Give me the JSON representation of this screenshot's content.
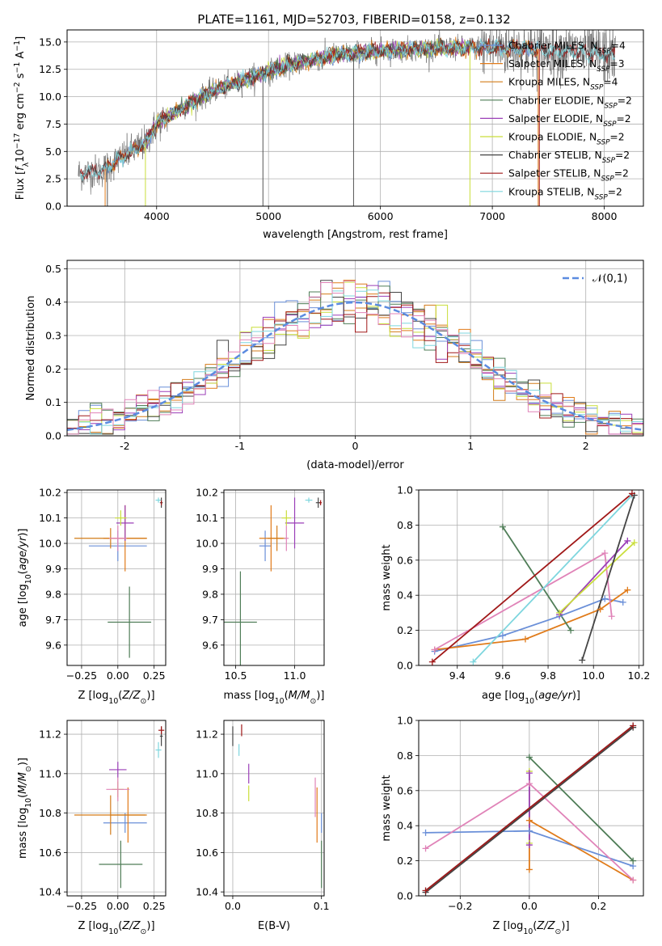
{
  "figure": {
    "title": "PLATE=1161, MJD=52703, FIBERID=0158, z=0.132"
  },
  "colors": {
    "Chabrier MILES": "#6a8fd8",
    "Salpeter MILES": "#e07b1a",
    "Kroupa MILES": "#d37b18",
    "Chabrier ELODIE": "#4f7d57",
    "Salpeter ELODIE": "#9b3fb8",
    "Kroupa ELODIE": "#c9de3a",
    "Chabrier STELIB": "#444444",
    "Salpeter STELIB": "#a01818",
    "Kroupa STELIB": "#7ed6de",
    "pink": "#e083b8",
    "normal": "#5b8be0"
  },
  "chart_data": [
    {
      "id": "spectrum",
      "type": "line",
      "title": "PLATE=1161, MJD=52703, FIBERID=0158, z=0.132",
      "xlabel": "wavelength [Angstrom, rest frame]",
      "ylabel": "Flux [f_λ 10^-17 erg cm^-2 s^-1 A^-1]",
      "xlim": [
        3200,
        8350
      ],
      "ylim": [
        0,
        16.1
      ],
      "xticks": [
        4000,
        5000,
        6000,
        7000,
        8000
      ],
      "yticks": [
        0.0,
        2.5,
        5.0,
        7.5,
        10.0,
        12.5,
        15.0
      ],
      "grid": true,
      "legend": "right",
      "legend_entries": [
        "Chabrier MILES, N_SSP=4",
        "Salpeter MILES, N_SSP=3",
        "Kroupa MILES, N_SSP=4",
        "Chabrier ELODIE, N_SSP=2",
        "Salpeter ELODIE, N_SSP=2",
        "Kroupa ELODIE, N_SSP=2",
        "Chabrier STELIB, N_SSP=2",
        "Salpeter STELIB, N_SSP=2",
        "Kroupa STELIB, N_SSP=2"
      ],
      "continuum_knots": [
        [
          3300,
          3.0
        ],
        [
          3500,
          3.2
        ],
        [
          3700,
          4.5
        ],
        [
          3900,
          5.8
        ],
        [
          4000,
          7.5
        ],
        [
          4200,
          8.8
        ],
        [
          4500,
          10.5
        ],
        [
          4800,
          11.6
        ],
        [
          5000,
          12.3
        ],
        [
          5300,
          13.2
        ],
        [
          5600,
          13.8
        ],
        [
          6000,
          14.2
        ],
        [
          6400,
          14.4
        ],
        [
          6800,
          14.5
        ],
        [
          7200,
          14.4
        ],
        [
          7600,
          14.2
        ],
        [
          8100,
          13.8
        ]
      ],
      "data_range": [
        3300,
        8100
      ],
      "model_ranges": {
        "MILES": [
          3540,
          7410
        ],
        "ELODIE": [
          3900,
          6800
        ],
        "STELIB": [
          3320,
          8100
        ]
      }
    },
    {
      "id": "residual_hist",
      "type": "line",
      "xlabel": "(data-model)/error",
      "ylabel": "Normed distribution",
      "xlim": [
        -2.5,
        2.5
      ],
      "ylim": [
        0,
        0.525
      ],
      "xticks": [
        -2,
        -1,
        0,
        1,
        2
      ],
      "yticks": [
        0.0,
        0.1,
        0.2,
        0.3,
        0.4,
        0.5
      ],
      "grid": true,
      "legend": "top-right",
      "legend_entries": [
        "𝒩(0,1)"
      ],
      "bin_width": 0.1
    },
    {
      "id": "age_vs_Z",
      "type": "scatter",
      "xlabel": "Z [log10(Z/Z☉)]",
      "ylabel": "age  [log10(age/yr)]",
      "xlim": [
        -0.35,
        0.33
      ],
      "ylim": [
        9.52,
        10.21
      ],
      "xticks": [
        -0.25,
        0.0,
        0.25
      ],
      "xticklabels": [
        "−0.25",
        "0.00",
        "0.25"
      ],
      "yticks": [
        9.6,
        9.7,
        9.8,
        9.9,
        10.0,
        10.1,
        10.2
      ],
      "yticklabels": [
        "9.6",
        "9.7",
        "9.8",
        "9.9",
        "10.0",
        "10.1",
        "10.2"
      ],
      "grid": true,
      "points": [
        {
          "s": "Chabrier MILES",
          "x": 0.0,
          "y": 9.99,
          "xe": 0.2,
          "ye": 0.06
        },
        {
          "s": "Salpeter MILES",
          "x": 0.05,
          "y": 10.02,
          "xe": 0.15,
          "ye": 0.13
        },
        {
          "s": "Kroupa MILES",
          "x": -0.05,
          "y": 10.02,
          "xe": 0.25,
          "ye": 0.04
        },
        {
          "s": "Chabrier ELODIE",
          "x": 0.08,
          "y": 9.69,
          "xe": 0.15,
          "ye": 0.14
        },
        {
          "s": "Salpeter ELODIE",
          "x": 0.05,
          "y": 10.08,
          "xe": 0.06,
          "ye": 0.07
        },
        {
          "s": "Kroupa ELODIE",
          "x": 0.02,
          "y": 10.1,
          "xe": 0.04,
          "ye": 0.03
        },
        {
          "s": "pink",
          "x": 0.0,
          "y": 10.02,
          "xe": 0.06,
          "ye": 0.05
        },
        {
          "s": "Chabrier STELIB",
          "x": 0.3,
          "y": 10.16,
          "xe": 0.01,
          "ye": 0.02
        },
        {
          "s": "Kroupa STELIB",
          "x": 0.28,
          "y": 10.17,
          "xe": 0.02,
          "ye": 0.01
        },
        {
          "s": "Salpeter STELIB",
          "x": 0.3,
          "y": 10.16,
          "xe": 0.005,
          "ye": 0.01
        }
      ]
    },
    {
      "id": "age_vs_mass",
      "type": "scatter",
      "xlabel": "mass [log10(M/M☉)]",
      "xlim": [
        10.4,
        11.25
      ],
      "ylim": [
        9.52,
        10.21
      ],
      "xticks": [
        10.5,
        11.0
      ],
      "xticklabels": [
        "10.5",
        "11.0"
      ],
      "yticks": [
        9.6,
        9.7,
        9.8,
        9.9,
        10.0,
        10.1,
        10.2
      ],
      "yticklabels": [
        "9.6",
        "9.7",
        "9.8",
        "9.9",
        "10.0",
        "10.1",
        "10.2"
      ],
      "grid": true,
      "points": [
        {
          "s": "Chabrier MILES",
          "x": 10.75,
          "y": 9.99,
          "xe": 0.05,
          "ye": 0.06
        },
        {
          "s": "Salpeter MILES",
          "x": 10.8,
          "y": 10.02,
          "xe": 0.1,
          "ye": 0.13
        },
        {
          "s": "Kroupa MILES",
          "x": 10.85,
          "y": 10.02,
          "xe": 0.08,
          "ye": 0.05
        },
        {
          "s": "Chabrier ELODIE",
          "x": 10.54,
          "y": 9.69,
          "xe": 0.14,
          "ye": 0.2
        },
        {
          "s": "Salpeter ELODIE",
          "x": 11.0,
          "y": 10.08,
          "xe": 0.08,
          "ye": 0.1
        },
        {
          "s": "Kroupa ELODIE",
          "x": 10.93,
          "y": 10.1,
          "xe": 0.04,
          "ye": 0.03
        },
        {
          "s": "pink",
          "x": 10.93,
          "y": 10.02,
          "xe": 0.02,
          "ye": 0.05
        },
        {
          "s": "Kroupa STELIB",
          "x": 11.12,
          "y": 10.17,
          "xe": 0.03,
          "ye": 0.01
        },
        {
          "s": "Chabrier STELIB",
          "x": 11.2,
          "y": 10.16,
          "xe": 0.02,
          "ye": 0.02
        },
        {
          "s": "Salpeter STELIB",
          "x": 11.22,
          "y": 10.16,
          "xe": 0.01,
          "ye": 0.01
        }
      ]
    },
    {
      "id": "weight_vs_age",
      "type": "line",
      "xlabel": "age  [log10(age/yr)]",
      "ylabel": "mass weight",
      "xlim": [
        9.23,
        10.22
      ],
      "ylim": [
        0,
        1.0
      ],
      "xticks": [
        9.4,
        9.6,
        9.8,
        10.0,
        10.2
      ],
      "xticklabels": [
        "9.4",
        "9.6",
        "9.8",
        "10.0",
        "10.2"
      ],
      "yticks": [
        0.0,
        0.2,
        0.4,
        0.6,
        0.8,
        1.0
      ],
      "yticklabels": [
        "0.0",
        "0.2",
        "0.4",
        "0.6",
        "0.8",
        "1.0"
      ],
      "grid": true,
      "series": [
        {
          "s": "Chabrier MILES",
          "x": [
            9.3,
            9.6,
            9.85,
            10.05,
            10.13
          ],
          "y": [
            0.08,
            0.17,
            0.28,
            0.38,
            0.36
          ]
        },
        {
          "s": "Salpeter MILES",
          "x": [
            9.3,
            9.7,
            10.03,
            10.15
          ],
          "y": [
            0.09,
            0.15,
            0.32,
            0.43
          ]
        },
        {
          "s": "pink",
          "x": [
            9.3,
            10.05,
            10.08
          ],
          "y": [
            0.09,
            0.64,
            0.28
          ]
        },
        {
          "s": "Salpeter ELODIE",
          "x": [
            9.85,
            10.15
          ],
          "y": [
            0.29,
            0.71
          ]
        },
        {
          "s": "Kroupa ELODIE",
          "x": [
            9.85,
            10.18
          ],
          "y": [
            0.3,
            0.7
          ]
        },
        {
          "s": "Chabrier ELODIE",
          "x": [
            9.6,
            9.9
          ],
          "y": [
            0.79,
            0.2
          ]
        },
        {
          "s": "Kroupa STELIB",
          "x": [
            9.47,
            10.17
          ],
          "y": [
            0.02,
            0.97
          ]
        },
        {
          "s": "Chabrier STELIB",
          "x": [
            9.95,
            10.18
          ],
          "y": [
            0.03,
            0.97
          ]
        },
        {
          "s": "Salpeter STELIB",
          "x": [
            9.29,
            10.17
          ],
          "y": [
            0.02,
            0.98
          ]
        }
      ]
    },
    {
      "id": "mass_vs_Z",
      "type": "scatter",
      "xlabel": "Z [log10(Z/Z☉)]",
      "ylabel": "mass [log10(M/M☉)]",
      "xlim": [
        -0.35,
        0.33
      ],
      "ylim": [
        10.38,
        11.27
      ],
      "xticks": [
        -0.25,
        0.0,
        0.25
      ],
      "xticklabels": [
        "−0.25",
        "0.00",
        "0.25"
      ],
      "yticks": [
        10.4,
        10.6,
        10.8,
        11.0,
        11.2
      ],
      "yticklabels": [
        "10.4",
        "10.6",
        "10.8",
        "11.0",
        "11.2"
      ],
      "grid": true,
      "points": [
        {
          "s": "Chabrier MILES",
          "x": 0.05,
          "y": 10.75,
          "xe": 0.15,
          "ye": 0.05
        },
        {
          "s": "Salpeter MILES",
          "x": 0.07,
          "y": 10.79,
          "xe": 0.12,
          "ye": 0.14
        },
        {
          "s": "Kroupa MILES",
          "x": -0.05,
          "y": 10.79,
          "xe": 0.25,
          "ye": 0.1
        },
        {
          "s": "Chabrier ELODIE",
          "x": 0.02,
          "y": 10.54,
          "xe": 0.15,
          "ye": 0.12
        },
        {
          "s": "Salpeter ELODIE",
          "x": 0.0,
          "y": 11.02,
          "xe": 0.06,
          "ye": 0.04
        },
        {
          "s": "Kroupa ELODIE",
          "x": 0.0,
          "y": 10.92,
          "xe": 0.04,
          "ye": 0.04
        },
        {
          "s": "pink",
          "x": 0.0,
          "y": 10.92,
          "xe": 0.08,
          "ye": 0.06
        },
        {
          "s": "Kroupa STELIB",
          "x": 0.28,
          "y": 11.12,
          "xe": 0.02,
          "ye": 0.04
        },
        {
          "s": "Chabrier STELIB",
          "x": 0.3,
          "y": 11.19,
          "xe": 0.01,
          "ye": 0.05
        },
        {
          "s": "Salpeter STELIB",
          "x": 0.3,
          "y": 11.22,
          "xe": 0.02,
          "ye": 0.02
        }
      ]
    },
    {
      "id": "mass_vs_EBV",
      "type": "scatter",
      "xlabel": "E(B-V)",
      "xlim": [
        -0.01,
        0.103
      ],
      "ylim": [
        10.38,
        11.27
      ],
      "xticks": [
        0.0,
        0.1
      ],
      "xticklabels": [
        "0.0",
        "0.1"
      ],
      "yticks": [
        10.4,
        10.6,
        10.8,
        11.0,
        11.2
      ],
      "yticklabels": [
        "10.4",
        "10.6",
        "10.8",
        "11.0",
        "11.2"
      ],
      "grid": true,
      "points": [
        {
          "s": "Chabrier MILES",
          "x": 0.1,
          "y": 10.75,
          "xe": 0,
          "ye": 0.05
        },
        {
          "s": "Salpeter MILES",
          "x": 0.095,
          "y": 10.79,
          "xe": 0,
          "ye": 0.14
        },
        {
          "s": "Chabrier ELODIE",
          "x": 0.1,
          "y": 10.54,
          "xe": 0,
          "ye": 0.12
        },
        {
          "s": "Salpeter ELODIE",
          "x": 0.018,
          "y": 11.0,
          "xe": 0,
          "ye": 0.05
        },
        {
          "s": "Kroupa ELODIE",
          "x": 0.018,
          "y": 10.9,
          "xe": 0,
          "ye": 0.04
        },
        {
          "s": "pink",
          "x": 0.093,
          "y": 10.88,
          "xe": 0,
          "ye": 0.1
        },
        {
          "s": "Kroupa STELIB",
          "x": 0.007,
          "y": 11.12,
          "xe": 0,
          "ye": 0.03
        },
        {
          "s": "Chabrier STELIB",
          "x": 0.0,
          "y": 11.19,
          "xe": 0,
          "ye": 0.05
        },
        {
          "s": "Salpeter STELIB",
          "x": 0.01,
          "y": 11.22,
          "xe": 0,
          "ye": 0.03
        }
      ]
    },
    {
      "id": "weight_vs_Z",
      "type": "line",
      "xlabel": "Z [log10(Z/Z☉)]",
      "ylabel": "mass weight",
      "xlim": [
        -0.32,
        0.33
      ],
      "ylim": [
        0,
        1.0
      ],
      "xticks": [
        -0.2,
        0.0,
        0.2
      ],
      "xticklabels": [
        "−0.2",
        "0.0",
        "0.2"
      ],
      "yticks": [
        0.0,
        0.2,
        0.4,
        0.6,
        0.8,
        1.0
      ],
      "yticklabels": [
        "0.0",
        "0.2",
        "0.4",
        "0.6",
        "0.8",
        "1.0"
      ],
      "grid": true,
      "series": [
        {
          "s": "Chabrier MILES",
          "x": [
            -0.3,
            0.0,
            0.3
          ],
          "y": [
            0.36,
            0.37,
            0.17
          ]
        },
        {
          "s": "Salpeter MILES",
          "x": [
            0.0,
            0.0,
            0.3
          ],
          "y": [
            0.15,
            0.43,
            0.09
          ]
        },
        {
          "s": "pink",
          "x": [
            -0.3,
            0.0,
            0.3
          ],
          "y": [
            0.27,
            0.64,
            0.09
          ]
        },
        {
          "s": "Kroupa ELODIE",
          "x": [
            0.0,
            0.0
          ],
          "y": [
            0.3,
            0.71
          ]
        },
        {
          "s": "Salpeter ELODIE",
          "x": [
            0.0,
            0.0
          ],
          "y": [
            0.29,
            0.7
          ]
        },
        {
          "s": "Chabrier ELODIE",
          "x": [
            0.0,
            0.3
          ],
          "y": [
            0.79,
            0.2
          ]
        },
        {
          "s": "Kroupa STELIB",
          "x": [
            -0.3,
            0.3
          ],
          "y": [
            0.03,
            0.97
          ]
        },
        {
          "s": "Chabrier STELIB",
          "x": [
            -0.3,
            0.3
          ],
          "y": [
            0.02,
            0.96
          ]
        },
        {
          "s": "Salpeter STELIB",
          "x": [
            -0.3,
            0.3
          ],
          "y": [
            0.03,
            0.97
          ]
        }
      ]
    }
  ]
}
